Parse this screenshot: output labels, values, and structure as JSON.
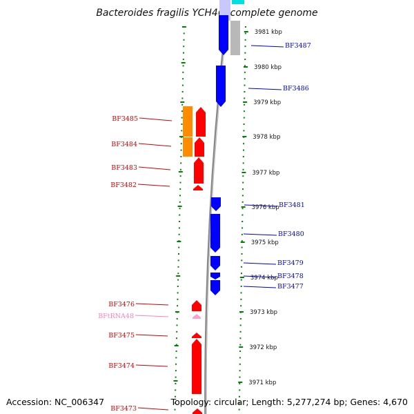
{
  "title": "Bacteroides fragilis YCH46, complete genome",
  "footer": {
    "accession": "Accession: NC_006347",
    "summary": "Topology: circular; Length: 5,277,274 bp; Genes: 4,670"
  },
  "colors": {
    "forward_gene": "#ff0000",
    "reverse_gene": "#0000ff",
    "rna": "#ff9fd0",
    "cog_orange": "#ff8c00",
    "ruler": "#008000",
    "backbone": "#888888",
    "forward_label": "#cc0000",
    "reverse_label": "#0000cc",
    "rna_label": "#ff7fbf"
  },
  "kbp_ticks": [
    {
      "label": "3981 kbp"
    },
    {
      "label": "3980 kbp"
    },
    {
      "label": "3979 kbp"
    },
    {
      "label": "3978 kbp"
    },
    {
      "label": "3977 kbp"
    },
    {
      "label": "3976 kbp"
    },
    {
      "label": "3975 kbp"
    },
    {
      "label": "3974 kbp"
    },
    {
      "label": "3973 kbp"
    },
    {
      "label": "3972 kbp"
    },
    {
      "label": "3971 kbp"
    }
  ],
  "genes_reverse": [
    {
      "label": "BF3487"
    },
    {
      "label": "BF3486"
    },
    {
      "label": "BF3481"
    },
    {
      "label": "BF3480"
    },
    {
      "label": "BF3479"
    },
    {
      "label": "BF3478"
    },
    {
      "label": "BF3477"
    }
  ],
  "genes_forward": [
    {
      "label": "BF3485"
    },
    {
      "label": "BF3484"
    },
    {
      "label": "BF3483"
    },
    {
      "label": "BF3482"
    },
    {
      "label": "BF3476"
    },
    {
      "label": "BFtRNA48"
    },
    {
      "label": "BF3475"
    },
    {
      "label": "BF3474"
    },
    {
      "label": "BF3473"
    }
  ]
}
